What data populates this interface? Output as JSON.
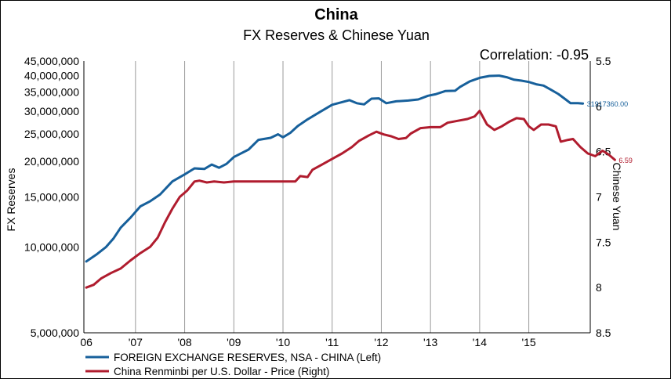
{
  "chart_data": {
    "type": "line",
    "title": "China",
    "subtitle": "FX Reserves & Chinese Yuan",
    "annotation": "Correlation: -0.95",
    "ylabel_left": "FX Reserves",
    "ylabel_right": "Chinese Yuan",
    "x_tick_labels": [
      "06",
      "'07",
      "'08",
      "'09",
      "'10",
      "'11",
      "'12",
      "'13",
      "'14",
      "'15"
    ],
    "x_tick_positions": [
      2006,
      2007,
      2008,
      2009,
      2010,
      2011,
      2012,
      2013,
      2014,
      2015
    ],
    "xlim": [
      2005.95,
      2016.25
    ],
    "left_axis": {
      "scale": "log",
      "ylim": [
        5000000,
        45000000
      ],
      "tick_values": [
        5000000,
        10000000,
        15000000,
        20000000,
        25000000,
        30000000,
        35000000,
        40000000,
        45000000
      ],
      "tick_labels": [
        "5,000,000",
        "10,000,000",
        "15,000,000",
        "20,000,000",
        "25,000,000",
        "30,000,000",
        "35,000,000",
        "40,000,000",
        "45,000,000"
      ]
    },
    "right_axis": {
      "scale": "linear",
      "inverted": true,
      "ylim": [
        5.5,
        8.5
      ],
      "tick_values": [
        5.5,
        6,
        6.5,
        7,
        7.5,
        8,
        8.5
      ],
      "tick_labels": [
        "5.5",
        "6",
        "6.5",
        "7",
        "7.5",
        "8",
        "8.5"
      ]
    },
    "vertical_grid": true,
    "horizontal_grid": false,
    "legend_position": "bottom",
    "series": [
      {
        "name": "FOREIGN EXCHANGE RESERVES, NSA - CHINA  (Left)",
        "axis": "left",
        "color": "#17609b",
        "last_value_label": "31917360.00",
        "points": [
          [
            2006.0,
            8900000
          ],
          [
            2006.2,
            9400000
          ],
          [
            2006.4,
            10000000
          ],
          [
            2006.55,
            10700000
          ],
          [
            2006.7,
            11700000
          ],
          [
            2006.9,
            12700000
          ],
          [
            2007.1,
            13900000
          ],
          [
            2007.3,
            14500000
          ],
          [
            2007.5,
            15300000
          ],
          [
            2007.75,
            17000000
          ],
          [
            2008.0,
            18000000
          ],
          [
            2008.2,
            18900000
          ],
          [
            2008.4,
            18800000
          ],
          [
            2008.55,
            19500000
          ],
          [
            2008.7,
            19000000
          ],
          [
            2008.85,
            19600000
          ],
          [
            2009.0,
            20700000
          ],
          [
            2009.3,
            22000000
          ],
          [
            2009.5,
            23800000
          ],
          [
            2009.75,
            24200000
          ],
          [
            2009.9,
            24900000
          ],
          [
            2010.0,
            24300000
          ],
          [
            2010.15,
            25200000
          ],
          [
            2010.3,
            26600000
          ],
          [
            2010.5,
            28100000
          ],
          [
            2010.75,
            29800000
          ],
          [
            2011.0,
            31600000
          ],
          [
            2011.2,
            32300000
          ],
          [
            2011.35,
            32800000
          ],
          [
            2011.5,
            32000000
          ],
          [
            2011.65,
            31700000
          ],
          [
            2011.8,
            33200000
          ],
          [
            2011.95,
            33300000
          ],
          [
            2012.1,
            32000000
          ],
          [
            2012.3,
            32500000
          ],
          [
            2012.55,
            32700000
          ],
          [
            2012.75,
            33000000
          ],
          [
            2012.95,
            34000000
          ],
          [
            2013.1,
            34400000
          ],
          [
            2013.3,
            35300000
          ],
          [
            2013.5,
            35400000
          ],
          [
            2013.6,
            36500000
          ],
          [
            2013.8,
            38200000
          ],
          [
            2014.0,
            39300000
          ],
          [
            2014.2,
            39900000
          ],
          [
            2014.4,
            40000000
          ],
          [
            2014.55,
            39500000
          ],
          [
            2014.7,
            38700000
          ],
          [
            2014.85,
            38400000
          ],
          [
            2015.0,
            38000000
          ],
          [
            2015.15,
            37300000
          ],
          [
            2015.3,
            36900000
          ],
          [
            2015.45,
            35700000
          ],
          [
            2015.6,
            34500000
          ],
          [
            2015.75,
            33000000
          ],
          [
            2015.85,
            32000000
          ],
          [
            2016.0,
            32000000
          ],
          [
            2016.1,
            31917360
          ]
        ]
      },
      {
        "name": "China Renminbi per U.S. Dollar - Price  (Right)",
        "axis": "right",
        "color": "#b01c2e",
        "last_value_label": "6.59",
        "points": [
          [
            2006.0,
            8.0
          ],
          [
            2006.15,
            7.97
          ],
          [
            2006.3,
            7.9
          ],
          [
            2006.5,
            7.84
          ],
          [
            2006.7,
            7.79
          ],
          [
            2006.9,
            7.7
          ],
          [
            2007.1,
            7.62
          ],
          [
            2007.3,
            7.55
          ],
          [
            2007.45,
            7.45
          ],
          [
            2007.6,
            7.28
          ],
          [
            2007.75,
            7.13
          ],
          [
            2007.9,
            7.0
          ],
          [
            2008.05,
            6.93
          ],
          [
            2008.2,
            6.83
          ],
          [
            2008.3,
            6.82
          ],
          [
            2008.45,
            6.84
          ],
          [
            2008.6,
            6.83
          ],
          [
            2008.8,
            6.84
          ],
          [
            2009.0,
            6.83
          ],
          [
            2009.5,
            6.83
          ],
          [
            2010.0,
            6.83
          ],
          [
            2010.25,
            6.83
          ],
          [
            2010.35,
            6.77
          ],
          [
            2010.5,
            6.78
          ],
          [
            2010.6,
            6.7
          ],
          [
            2010.8,
            6.64
          ],
          [
            2011.0,
            6.58
          ],
          [
            2011.2,
            6.52
          ],
          [
            2011.4,
            6.45
          ],
          [
            2011.55,
            6.38
          ],
          [
            2011.75,
            6.32
          ],
          [
            2011.9,
            6.28
          ],
          [
            2012.05,
            6.31
          ],
          [
            2012.2,
            6.33
          ],
          [
            2012.35,
            6.36
          ],
          [
            2012.5,
            6.35
          ],
          [
            2012.6,
            6.3
          ],
          [
            2012.8,
            6.24
          ],
          [
            2013.0,
            6.23
          ],
          [
            2013.2,
            6.23
          ],
          [
            2013.35,
            6.18
          ],
          [
            2013.55,
            6.16
          ],
          [
            2013.75,
            6.14
          ],
          [
            2013.9,
            6.11
          ],
          [
            2014.0,
            6.05
          ],
          [
            2014.15,
            6.2
          ],
          [
            2014.3,
            6.26
          ],
          [
            2014.45,
            6.22
          ],
          [
            2014.6,
            6.17
          ],
          [
            2014.75,
            6.13
          ],
          [
            2014.9,
            6.14
          ],
          [
            2015.0,
            6.22
          ],
          [
            2015.1,
            6.26
          ],
          [
            2015.25,
            6.2
          ],
          [
            2015.4,
            6.2
          ],
          [
            2015.55,
            6.22
          ],
          [
            2015.65,
            6.39
          ],
          [
            2015.8,
            6.37
          ],
          [
            2015.9,
            6.36
          ],
          [
            2016.05,
            6.45
          ],
          [
            2016.2,
            6.52
          ],
          [
            2016.35,
            6.55
          ],
          [
            2016.5,
            6.49
          ],
          [
            2016.62,
            6.53
          ],
          [
            2016.75,
            6.59
          ]
        ]
      }
    ]
  }
}
